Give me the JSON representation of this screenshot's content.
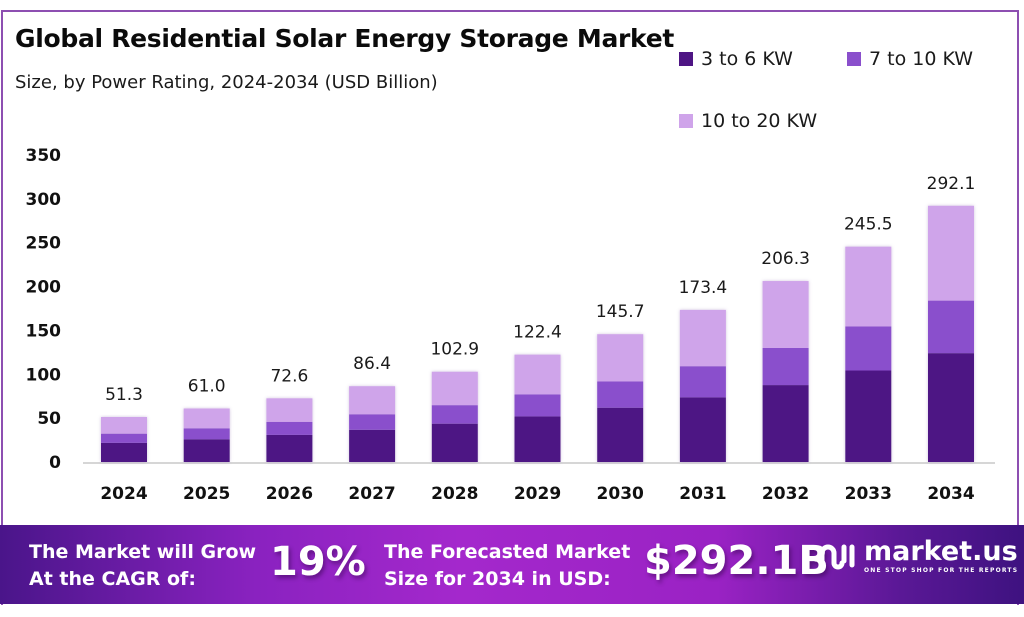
{
  "header": {
    "title": "Global Residential Solar Energy Storage Market",
    "subtitle": "Size, by Power Rating, 2024-2034 (USD Billion)"
  },
  "colors": {
    "dark": "#4e1584",
    "mid": "#8a4fcc",
    "light": "#cfa4ea",
    "frame": "#8d4fb1"
  },
  "chart_data": {
    "type": "bar",
    "stacked": true,
    "title": "Global Residential Solar Energy Storage Market",
    "subtitle": "Size, by Power Rating, 2024-2034 (USD Billion)",
    "xlabel": "",
    "ylabel": "",
    "ylim": [
      0,
      350
    ],
    "yticks": [
      0,
      50,
      100,
      150,
      200,
      250,
      300,
      350
    ],
    "grid": false,
    "legend_position": "top-right",
    "categories": [
      "2024",
      "2025",
      "2026",
      "2027",
      "2028",
      "2029",
      "2030",
      "2031",
      "2032",
      "2033",
      "2034"
    ],
    "totals": [
      51.3,
      61.0,
      72.6,
      86.4,
      102.9,
      122.4,
      145.7,
      173.4,
      206.3,
      245.5,
      292.1
    ],
    "total_labels": [
      "51.3",
      "61.0",
      "72.6",
      "86.4",
      "102.9",
      "122.4",
      "145.7",
      "173.4",
      "206.3",
      "245.5",
      "292.1"
    ],
    "series": [
      {
        "name": "3 to 6 KW",
        "color": "#4e1584",
        "values": [
          21.8,
          25.9,
          30.9,
          36.7,
          43.7,
          52.0,
          61.9,
          73.7,
          87.7,
          104.3,
          124.1
        ]
      },
      {
        "name": "7 to 10 KW",
        "color": "#8a4fcc",
        "values": [
          10.5,
          12.5,
          14.9,
          17.7,
          21.1,
          25.1,
          29.9,
          35.5,
          42.3,
          50.3,
          59.9
        ]
      },
      {
        "name": "10 to 20 KW",
        "color": "#cfa4ea",
        "values": [
          19.0,
          22.6,
          26.8,
          32.0,
          38.1,
          45.3,
          53.9,
          64.2,
          76.3,
          90.9,
          108.1
        ]
      }
    ]
  },
  "banner": {
    "cagr_text_line1": "The Market will Grow",
    "cagr_text_line2": "At the CAGR of:",
    "cagr_value": "19%",
    "forecast_text_line1": "The Forecasted Market",
    "forecast_text_line2": "Size for 2034 in USD:",
    "forecast_value": "$292.1B",
    "logo_name": "market.us",
    "logo_tagline": "ONE STOP SHOP FOR THE REPORTS"
  }
}
